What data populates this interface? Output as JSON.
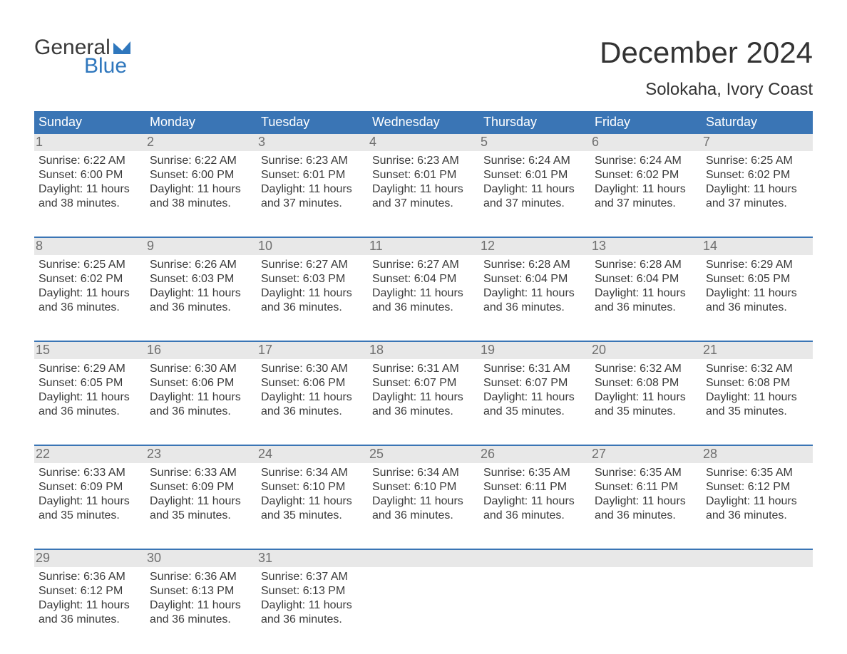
{
  "brand": {
    "line1": "General",
    "line2": "Blue",
    "accent_color": "#2f77bd"
  },
  "title": "December 2024",
  "location": "Solokaha, Ivory Coast",
  "colors": {
    "header_bg": "#3a75b5",
    "header_text": "#ffffff",
    "daynum_bg": "#e8e8e8",
    "daynum_text": "#6f6f6f",
    "body_text": "#3a3a3a",
    "week_border": "#3a75b5",
    "page_bg": "#ffffff"
  },
  "weekdays": [
    "Sunday",
    "Monday",
    "Tuesday",
    "Wednesday",
    "Thursday",
    "Friday",
    "Saturday"
  ],
  "weeks": [
    [
      {
        "n": "1",
        "sunrise": "6:22 AM",
        "sunset": "6:00 PM",
        "dl1": "11 hours",
        "dl2": "and 38 minutes."
      },
      {
        "n": "2",
        "sunrise": "6:22 AM",
        "sunset": "6:00 PM",
        "dl1": "11 hours",
        "dl2": "and 38 minutes."
      },
      {
        "n": "3",
        "sunrise": "6:23 AM",
        "sunset": "6:01 PM",
        "dl1": "11 hours",
        "dl2": "and 37 minutes."
      },
      {
        "n": "4",
        "sunrise": "6:23 AM",
        "sunset": "6:01 PM",
        "dl1": "11 hours",
        "dl2": "and 37 minutes."
      },
      {
        "n": "5",
        "sunrise": "6:24 AM",
        "sunset": "6:01 PM",
        "dl1": "11 hours",
        "dl2": "and 37 minutes."
      },
      {
        "n": "6",
        "sunrise": "6:24 AM",
        "sunset": "6:02 PM",
        "dl1": "11 hours",
        "dl2": "and 37 minutes."
      },
      {
        "n": "7",
        "sunrise": "6:25 AM",
        "sunset": "6:02 PM",
        "dl1": "11 hours",
        "dl2": "and 37 minutes."
      }
    ],
    [
      {
        "n": "8",
        "sunrise": "6:25 AM",
        "sunset": "6:02 PM",
        "dl1": "11 hours",
        "dl2": "and 36 minutes."
      },
      {
        "n": "9",
        "sunrise": "6:26 AM",
        "sunset": "6:03 PM",
        "dl1": "11 hours",
        "dl2": "and 36 minutes."
      },
      {
        "n": "10",
        "sunrise": "6:27 AM",
        "sunset": "6:03 PM",
        "dl1": "11 hours",
        "dl2": "and 36 minutes."
      },
      {
        "n": "11",
        "sunrise": "6:27 AM",
        "sunset": "6:04 PM",
        "dl1": "11 hours",
        "dl2": "and 36 minutes."
      },
      {
        "n": "12",
        "sunrise": "6:28 AM",
        "sunset": "6:04 PM",
        "dl1": "11 hours",
        "dl2": "and 36 minutes."
      },
      {
        "n": "13",
        "sunrise": "6:28 AM",
        "sunset": "6:04 PM",
        "dl1": "11 hours",
        "dl2": "and 36 minutes."
      },
      {
        "n": "14",
        "sunrise": "6:29 AM",
        "sunset": "6:05 PM",
        "dl1": "11 hours",
        "dl2": "and 36 minutes."
      }
    ],
    [
      {
        "n": "15",
        "sunrise": "6:29 AM",
        "sunset": "6:05 PM",
        "dl1": "11 hours",
        "dl2": "and 36 minutes."
      },
      {
        "n": "16",
        "sunrise": "6:30 AM",
        "sunset": "6:06 PM",
        "dl1": "11 hours",
        "dl2": "and 36 minutes."
      },
      {
        "n": "17",
        "sunrise": "6:30 AM",
        "sunset": "6:06 PM",
        "dl1": "11 hours",
        "dl2": "and 36 minutes."
      },
      {
        "n": "18",
        "sunrise": "6:31 AM",
        "sunset": "6:07 PM",
        "dl1": "11 hours",
        "dl2": "and 36 minutes."
      },
      {
        "n": "19",
        "sunrise": "6:31 AM",
        "sunset": "6:07 PM",
        "dl1": "11 hours",
        "dl2": "and 35 minutes."
      },
      {
        "n": "20",
        "sunrise": "6:32 AM",
        "sunset": "6:08 PM",
        "dl1": "11 hours",
        "dl2": "and 35 minutes."
      },
      {
        "n": "21",
        "sunrise": "6:32 AM",
        "sunset": "6:08 PM",
        "dl1": "11 hours",
        "dl2": "and 35 minutes."
      }
    ],
    [
      {
        "n": "22",
        "sunrise": "6:33 AM",
        "sunset": "6:09 PM",
        "dl1": "11 hours",
        "dl2": "and 35 minutes."
      },
      {
        "n": "23",
        "sunrise": "6:33 AM",
        "sunset": "6:09 PM",
        "dl1": "11 hours",
        "dl2": "and 35 minutes."
      },
      {
        "n": "24",
        "sunrise": "6:34 AM",
        "sunset": "6:10 PM",
        "dl1": "11 hours",
        "dl2": "and 35 minutes."
      },
      {
        "n": "25",
        "sunrise": "6:34 AM",
        "sunset": "6:10 PM",
        "dl1": "11 hours",
        "dl2": "and 36 minutes."
      },
      {
        "n": "26",
        "sunrise": "6:35 AM",
        "sunset": "6:11 PM",
        "dl1": "11 hours",
        "dl2": "and 36 minutes."
      },
      {
        "n": "27",
        "sunrise": "6:35 AM",
        "sunset": "6:11 PM",
        "dl1": "11 hours",
        "dl2": "and 36 minutes."
      },
      {
        "n": "28",
        "sunrise": "6:35 AM",
        "sunset": "6:12 PM",
        "dl1": "11 hours",
        "dl2": "and 36 minutes."
      }
    ],
    [
      {
        "n": "29",
        "sunrise": "6:36 AM",
        "sunset": "6:12 PM",
        "dl1": "11 hours",
        "dl2": "and 36 minutes."
      },
      {
        "n": "30",
        "sunrise": "6:36 AM",
        "sunset": "6:13 PM",
        "dl1": "11 hours",
        "dl2": "and 36 minutes."
      },
      {
        "n": "31",
        "sunrise": "6:37 AM",
        "sunset": "6:13 PM",
        "dl1": "11 hours",
        "dl2": "and 36 minutes."
      },
      {
        "empty": true
      },
      {
        "empty": true
      },
      {
        "empty": true
      },
      {
        "empty": true
      }
    ]
  ],
  "labels": {
    "sunrise": "Sunrise: ",
    "sunset": "Sunset: ",
    "daylight": "Daylight: "
  }
}
